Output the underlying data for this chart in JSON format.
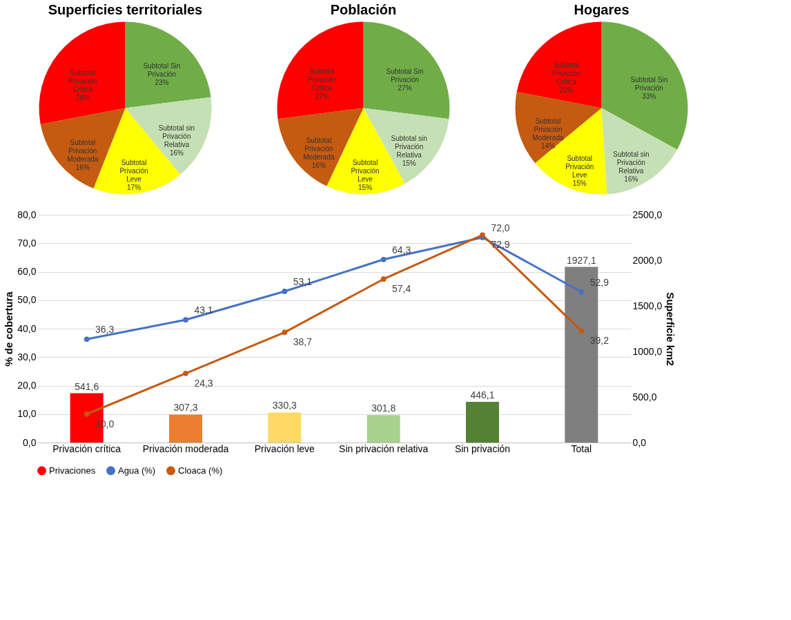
{
  "chart_data": [
    {
      "type": "pie",
      "title": "Superficies territoriales",
      "categories": [
        "Subtotal Sin Privación",
        "Subtotal sin Privación Relativa",
        "Subtotal Privación Leve",
        "Subtotal Privación Moderada",
        "Subtotal Privación Crítica"
      ],
      "values": [
        23,
        16,
        17,
        16,
        28
      ],
      "value_labels": [
        "23%",
        "16%",
        "17%",
        "16%",
        "28%"
      ],
      "colors": [
        "#70ad47",
        "#c5e0b4",
        "#ffff00",
        "#c55a11",
        "#ff0000"
      ]
    },
    {
      "type": "pie",
      "title": "Población",
      "categories": [
        "Subtotal Sin Privación",
        "Subtotal sin Privación Relativa",
        "Subtotal Privación Leve",
        "Subtotal Privación Moderada",
        "Subtotal Privación Crítica"
      ],
      "values": [
        27,
        15,
        15,
        16,
        27
      ],
      "value_labels": [
        "27%",
        "15%",
        "15%",
        "16%",
        "27%"
      ],
      "colors": [
        "#70ad47",
        "#c5e0b4",
        "#ffff00",
        "#c55a11",
        "#ff0000"
      ]
    },
    {
      "type": "pie",
      "title": "Hogares",
      "categories": [
        "Subtotal Sin Privación",
        "Subtotal sin Privación Relativa",
        "Subtotal Privación Leve",
        "Subtotal Privación Moderada",
        "Subtotal Privación Crítica"
      ],
      "values": [
        33,
        16,
        15,
        14,
        22
      ],
      "value_labels": [
        "33%",
        "16%",
        "15%",
        "14%",
        "22%"
      ],
      "colors": [
        "#70ad47",
        "#c5e0b4",
        "#ffff00",
        "#c55a11",
        "#ff0000"
      ]
    },
    {
      "type": "bar",
      "categories": [
        "Privación crítica",
        "Privación moderada",
        "Privación leve",
        "Sin privación relativa",
        "Sin privación",
        "Total"
      ],
      "series": [
        {
          "name": "Privaciones",
          "type": "bar",
          "axis": "y2",
          "colors": [
            "#ff0000",
            "#ed7d31",
            "#ffd966",
            "#a9d18e",
            "#548235",
            "#7f7f7f"
          ],
          "values": [
            541.6,
            307.3,
            330.3,
            301.8,
            446.1,
            1927.1
          ],
          "value_labels": [
            "541,6",
            "307,3",
            "330,3",
            "301,8",
            "446,1",
            "1927,1"
          ]
        },
        {
          "name": "Agua (%)",
          "type": "line",
          "color": "#4472c4",
          "values": [
            36.3,
            43.1,
            53.1,
            64.3,
            72.0,
            52.9
          ],
          "value_labels": [
            "36,3",
            "43,1",
            "53,1",
            "64,3",
            "72,0",
            "52,9"
          ]
        },
        {
          "name": "Cloaca (%)",
          "type": "line",
          "color": "#c55a11",
          "values": [
            10.0,
            24.3,
            38.7,
            57.4,
            72.9,
            39.2
          ],
          "value_labels": [
            "10,0",
            "24,3",
            "38,7",
            "57,4",
            "72,9",
            "39,2"
          ]
        }
      ],
      "ylabel": "% de cobertura",
      "y2label": "Superficie km2",
      "ylim": [
        0,
        80
      ],
      "yticks": [
        {
          "value": 0,
          "label": "0,0"
        },
        {
          "value": 10,
          "label": "10,0"
        },
        {
          "value": 20,
          "label": "20,0"
        },
        {
          "value": 30,
          "label": "30,0"
        },
        {
          "value": 40,
          "label": "40,0"
        },
        {
          "value": 50,
          "label": "50,0"
        },
        {
          "value": 60,
          "label": "60,0"
        },
        {
          "value": 70,
          "label": "70,0"
        },
        {
          "value": 80,
          "label": "80,0"
        }
      ],
      "y2lim": [
        0,
        2500
      ],
      "y2ticks": [
        {
          "value": 0,
          "label": "0,0"
        },
        {
          "value": 500,
          "label": "500,0"
        },
        {
          "value": 1000,
          "label": "1000,0"
        },
        {
          "value": 1500,
          "label": "1500,0"
        },
        {
          "value": 2000,
          "label": "2000,0"
        },
        {
          "value": 2500,
          "label": "2500,0"
        }
      ],
      "grid": "y",
      "legend": "bottom",
      "marker": "circle",
      "line_style": "solid"
    }
  ]
}
